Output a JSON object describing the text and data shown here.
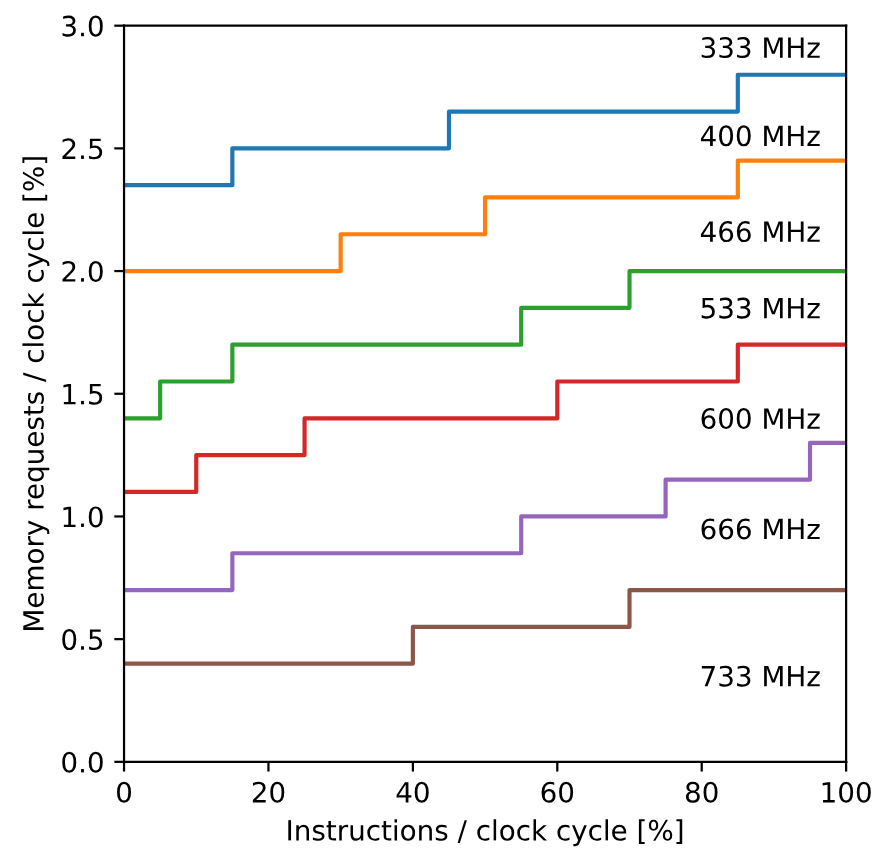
{
  "chart_data": {
    "type": "step",
    "xlabel": "Instructions / clock cycle [%]",
    "ylabel": "Memory requests / clock cycle [%]",
    "xlim": [
      0,
      100
    ],
    "ylim": [
      0,
      3.0
    ],
    "xticks": [
      0,
      20,
      40,
      60,
      80,
      100
    ],
    "yticks": [
      {
        "value": 0,
        "label": "0.0"
      },
      {
        "value": 0.5,
        "label": "0.5"
      },
      {
        "value": 1,
        "label": "1.0"
      },
      {
        "value": 1.5,
        "label": "1.5"
      },
      {
        "value": 2,
        "label": "2.0"
      },
      {
        "value": 2.5,
        "label": "2.5"
      },
      {
        "value": 3,
        "label": "3.0"
      }
    ],
    "grid": false,
    "legend": false,
    "series": [
      {
        "color": "#1f77b4",
        "x": [
          0,
          15,
          45,
          85,
          100
        ],
        "values": [
          2.35,
          2.5,
          2.65,
          2.8,
          2.8
        ]
      },
      {
        "color": "#ff7f0e",
        "x": [
          0,
          30,
          50,
          85,
          100
        ],
        "values": [
          2.0,
          2.15,
          2.3,
          2.45,
          2.45
        ]
      },
      {
        "color": "#2ca02c",
        "x": [
          0,
          5,
          15,
          55,
          70,
          100
        ],
        "values": [
          1.4,
          1.55,
          1.7,
          1.85,
          2.0,
          2.0
        ]
      },
      {
        "color": "#d62728",
        "x": [
          0,
          10,
          25,
          60,
          85,
          100
        ],
        "values": [
          1.1,
          1.25,
          1.4,
          1.55,
          1.7,
          1.7
        ]
      },
      {
        "color": "#9467bd",
        "x": [
          0,
          15,
          55,
          75,
          95,
          100
        ],
        "values": [
          0.7,
          0.85,
          1.0,
          1.15,
          1.3,
          1.3
        ]
      },
      {
        "color": "#8c564b",
        "x": [
          0,
          40,
          70,
          100
        ],
        "values": [
          0.4,
          0.55,
          0.7,
          0.7
        ]
      }
    ],
    "annotations": [
      "333 MHz",
      "400 MHz",
      "466 MHz",
      "533 MHz",
      "600 MHz",
      "666 MHz",
      "733 MHz"
    ]
  }
}
